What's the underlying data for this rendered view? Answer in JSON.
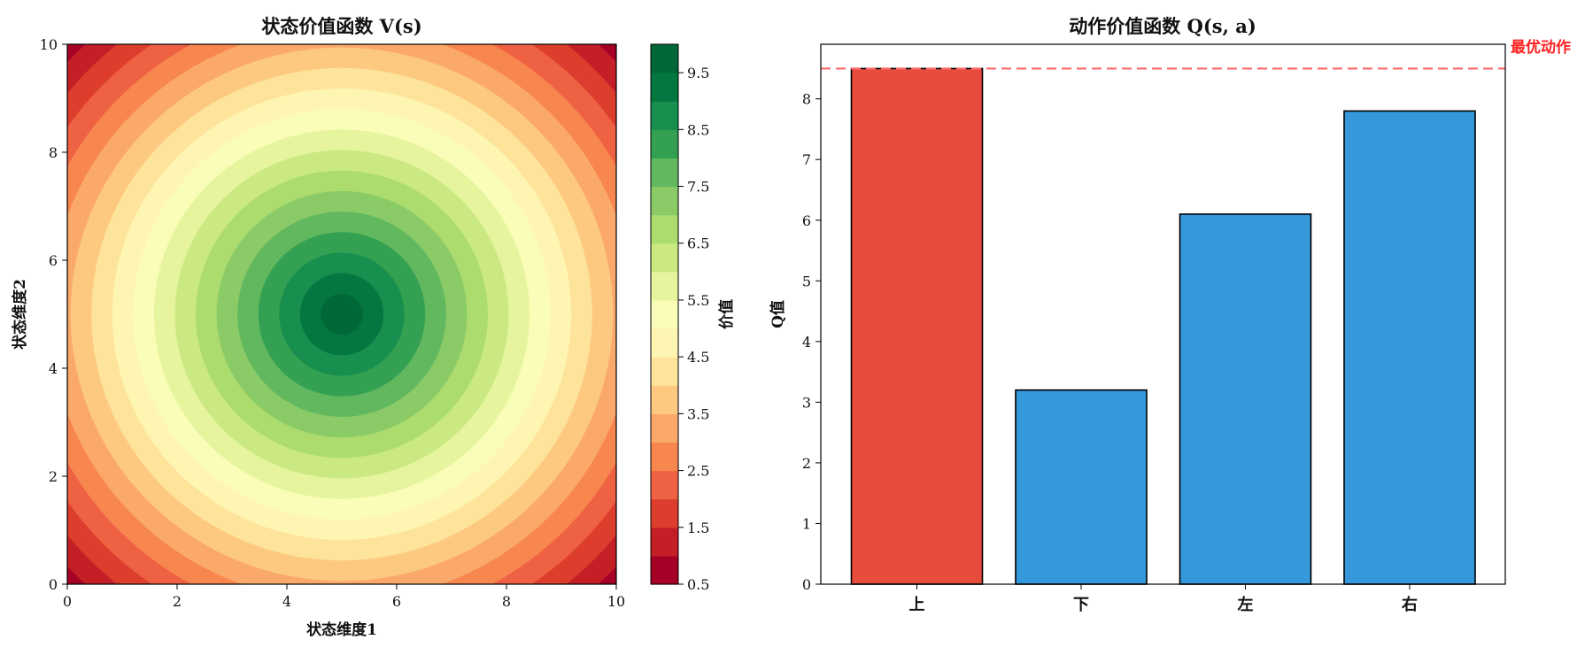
{
  "chart_data": [
    {
      "type": "heatmap",
      "subtype": "filled-contour",
      "title": "状态价值函数 V(s)",
      "xlabel": "状态维度1",
      "ylabel": "状态维度2",
      "xlim": [
        0,
        10
      ],
      "ylim": [
        0,
        10
      ],
      "x_ticks": [
        "0",
        "2",
        "4",
        "6",
        "8",
        "10"
      ],
      "y_ticks": [
        "0",
        "2",
        "4",
        "6",
        "8",
        "10"
      ],
      "center": [
        5,
        5
      ],
      "peak_value": 10,
      "corner_value": 0.7,
      "radius_scale": 7.07,
      "levels": [
        0.5,
        1.0,
        1.5,
        2.0,
        2.5,
        3.0,
        3.5,
        4.0,
        4.5,
        5.0,
        5.5,
        6.0,
        6.5,
        7.0,
        7.5,
        8.0,
        8.5,
        9.0,
        9.5,
        10.0
      ],
      "colormap": "RdYlGn",
      "colors": [
        "#a50026",
        "#c41e27",
        "#dc3d2d",
        "#ee6142",
        "#f7864f",
        "#fba96b",
        "#fdc981",
        "#fee39a",
        "#fff5b3",
        "#fafdb8",
        "#e6f59d",
        "#cbe982",
        "#acdb6e",
        "#8bcb67",
        "#62b85f",
        "#34a152",
        "#178f4e",
        "#04763f",
        "#006837"
      ],
      "colorbar": {
        "label": "价值",
        "ticks": [
          "0.5",
          "1.5",
          "2.5",
          "3.5",
          "4.5",
          "5.5",
          "6.5",
          "7.5",
          "8.5",
          "9.5"
        ]
      },
      "grid": false
    },
    {
      "type": "bar",
      "title": "动作价值函数 Q(s, a)",
      "xlabel": "",
      "ylabel": "Q值",
      "categories": [
        "上",
        "下",
        "左",
        "右"
      ],
      "values": [
        8.5,
        3.2,
        6.1,
        7.8
      ],
      "bar_colors": [
        "#e74c3c",
        "#3498db",
        "#3498db",
        "#3498db"
      ],
      "highlight_color": "#e74c3c",
      "default_color": "#3498db",
      "ylim": [
        0,
        8.9
      ],
      "y_ticks": [
        "0",
        "1",
        "2",
        "3",
        "4",
        "5",
        "6",
        "7",
        "8"
      ],
      "reference_line": {
        "value": 8.5,
        "label": "最优动作",
        "color": "#ff6b6b",
        "style": "dashed"
      },
      "grid": false
    }
  ]
}
